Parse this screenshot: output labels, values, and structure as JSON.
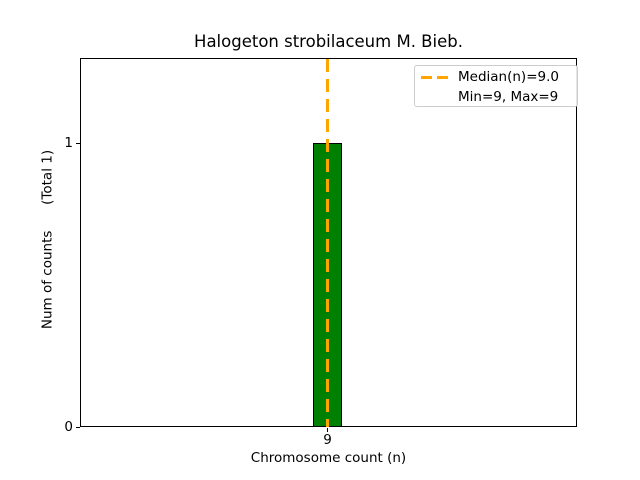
{
  "chart_data": {
    "type": "bar",
    "title": "Halogeton strobilaceum M. Bieb.",
    "xlabel": "Chromosome count (n)",
    "ylabel": "Num of counts      (Total 1)",
    "categories": [
      "9"
    ],
    "values": [
      1
    ],
    "xticks": [
      "9"
    ],
    "yticks": [
      "0",
      "1"
    ],
    "ylim": [
      0,
      1.3
    ],
    "grid": false,
    "bar_color": "#008000",
    "bar_edge_color": "#000000",
    "background_color": "#ffffff",
    "median_line": {
      "x": 9.0,
      "color": "#FFA500",
      "style": "dashed",
      "orientation": "vertical"
    },
    "stats": {
      "median": 9.0,
      "min": 9,
      "max": 9,
      "total_counts": 1
    },
    "legend": {
      "position": "upper right",
      "entries": [
        {
          "handle": "orange-dashed-line",
          "label": "Median(n)=9.0"
        },
        {
          "handle": "none",
          "label": "Min=9, Max=9"
        }
      ]
    }
  }
}
